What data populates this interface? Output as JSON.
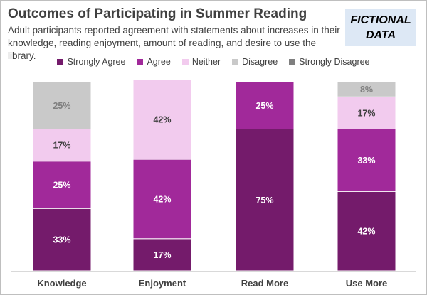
{
  "header": {
    "title": "Outcomes of Participating in Summer Reading",
    "subtitle": "Adult participants reported agreement with statements about increases in their knowledge, reading enjoyment, amount of reading, and desire to use the library.",
    "badge_line1": "FICTIONAL",
    "badge_line2": "DATA"
  },
  "chart_data": {
    "type": "bar",
    "stacked": true,
    "categories": [
      "Knowledge",
      "Enjoyment",
      "Read More",
      "Use More"
    ],
    "series": [
      {
        "name": "Strongly Agree",
        "color": "#741b6b",
        "values": [
          33,
          17,
          75,
          42
        ]
      },
      {
        "name": "Agree",
        "color": "#a1299a",
        "values": [
          25,
          42,
          25,
          33
        ]
      },
      {
        "name": "Neither",
        "color": "#f2cbee",
        "values": [
          17,
          42,
          0,
          17
        ]
      },
      {
        "name": "Disagree",
        "color": "#c9c9c9",
        "values": [
          25,
          0,
          0,
          8
        ]
      },
      {
        "name": "Strongly Disagree",
        "color": "#7f7f7f",
        "values": [
          0,
          0,
          0,
          0
        ]
      }
    ],
    "value_suffix": "%",
    "ylim": [
      0,
      100
    ],
    "legend_position": "top",
    "grid": false
  }
}
